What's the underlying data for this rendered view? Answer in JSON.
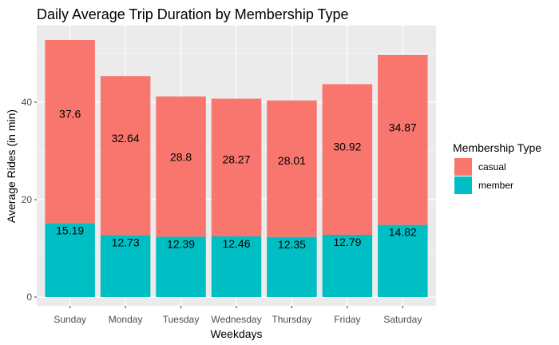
{
  "chart_data": {
    "type": "bar",
    "stacked": true,
    "title": "Daily Average Trip Duration by Membership Type",
    "xlabel": "Weekdays",
    "ylabel": "Average Rides (in min)",
    "ylim": [
      0,
      55
    ],
    "yticks": [
      0,
      20,
      40
    ],
    "grid": true,
    "legend_position": "right",
    "legend_title": "Membership Type",
    "categories": [
      "Sunday",
      "Monday",
      "Tuesday",
      "Wednesday",
      "Thursday",
      "Friday",
      "Saturday"
    ],
    "series": [
      {
        "name": "member",
        "color": "#00BFC4",
        "values": [
          15.19,
          12.73,
          12.39,
          12.46,
          12.35,
          12.79,
          14.82
        ]
      },
      {
        "name": "casual",
        "color": "#F8766D",
        "values": [
          37.6,
          32.64,
          28.8,
          28.27,
          28.01,
          30.92,
          34.87
        ]
      }
    ],
    "legend_order": [
      "casual",
      "member"
    ],
    "panel_color": "#EBEBEB",
    "grid_color": "#FFFFFF"
  }
}
